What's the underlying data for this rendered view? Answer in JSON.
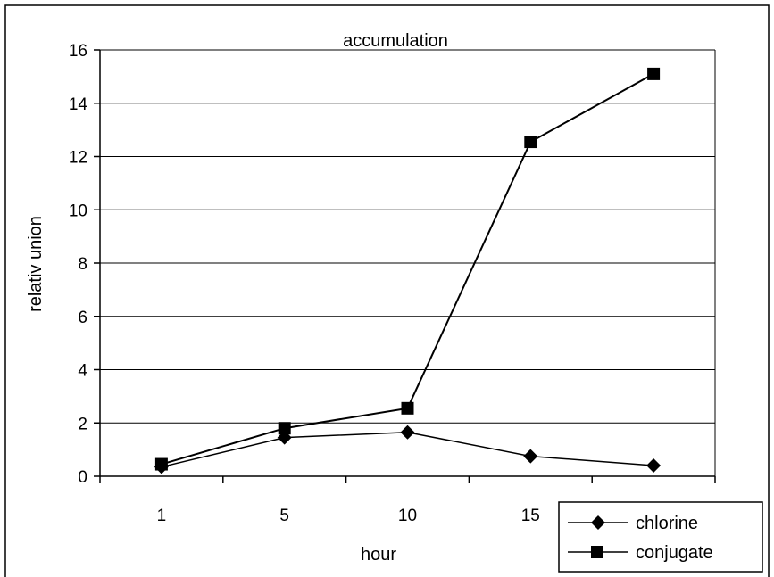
{
  "chart_data": {
    "type": "line",
    "title": "accumulation",
    "xlabel": "hour",
    "ylabel": "relativ union",
    "categories": [
      "1",
      "5",
      "10",
      "15",
      ""
    ],
    "ylim": [
      0,
      16
    ],
    "yticks": [
      "0",
      "2",
      "4",
      "6",
      "8",
      "10",
      "12",
      "14",
      "16"
    ],
    "grid": true,
    "legend_position": "bottom-right",
    "series": [
      {
        "name": "chlorine",
        "marker": "diamond",
        "values": [
          0.35,
          1.45,
          1.65,
          0.75,
          0.4
        ]
      },
      {
        "name": "conjugate",
        "marker": "square",
        "values": [
          0.45,
          1.8,
          2.55,
          12.55,
          15.1
        ]
      }
    ],
    "colors": {
      "line": "#000000",
      "background": "#ffffff",
      "grid": "#000000"
    }
  }
}
